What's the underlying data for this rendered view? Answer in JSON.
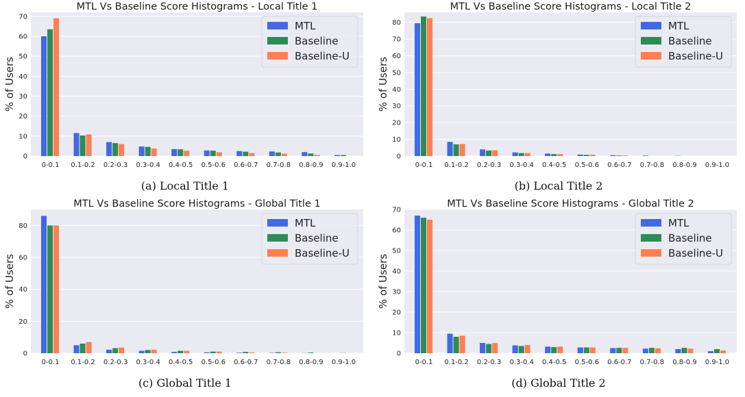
{
  "colors": {
    "MTL": "#4169e1",
    "Baseline": "#2e8b57",
    "Baseline-U": "#ff7f50",
    "plot_bg": "#eaeaf2",
    "grid": "#ffffff"
  },
  "chart_data": [
    {
      "type": "bar",
      "title": "MTL Vs Baseline Score Histograms - Local Title 1",
      "caption": "(a) Local Title 1",
      "ylabel": "% of Users",
      "xlabel": "",
      "ylim": [
        0,
        72
      ],
      "yticks": [
        0,
        10,
        20,
        30,
        40,
        50,
        60,
        70
      ],
      "legend": "top-right",
      "grid": true,
      "categories": [
        "0-0.1",
        "0.1-0.2",
        "0.2-0.3",
        "0.3-0.4",
        "0.4-0.5",
        "0.5-0.6",
        "0.6-0.7",
        "0.7-0.8",
        "0.8-0.9",
        "0.9-1.0"
      ],
      "series": [
        {
          "name": "MTL",
          "values": [
            60,
            11.5,
            7,
            4.8,
            3.5,
            2.8,
            2.5,
            2.3,
            2,
            0.5
          ]
        },
        {
          "name": "Baseline",
          "values": [
            63.5,
            10.3,
            6.5,
            4.6,
            3.4,
            2.7,
            2.2,
            1.8,
            1.3,
            0.5
          ]
        },
        {
          "name": "Baseline-U",
          "values": [
            69,
            10.8,
            6,
            3.8,
            2.7,
            1.9,
            1.5,
            1.2,
            0.6,
            0
          ]
        }
      ]
    },
    {
      "type": "bar",
      "title": "MTL Vs Baseline Score Histograms - Local Title 2",
      "caption": "(b) Local Title 2",
      "ylabel": "% of Users",
      "xlabel": "",
      "ylim": [
        0,
        86
      ],
      "yticks": [
        0,
        10,
        20,
        30,
        40,
        50,
        60,
        70,
        80
      ],
      "legend": "top-right",
      "grid": true,
      "categories": [
        "0-0.1",
        "0.1-0.2",
        "0.2-0.3",
        "0.3-0.4",
        "0.4-0.5",
        "0.5-0.6",
        "0.6-0.7",
        "0.7-0.8",
        "0.8-0.9",
        "0.9-1.0"
      ],
      "series": [
        {
          "name": "MTL",
          "values": [
            79.5,
            8.5,
            4,
            2.2,
            1.5,
            0.9,
            0.5,
            0.3,
            0.1,
            0
          ]
        },
        {
          "name": "Baseline",
          "values": [
            83.5,
            7,
            3.3,
            1.8,
            1.2,
            0.7,
            0.3,
            0,
            0,
            0
          ]
        },
        {
          "name": "Baseline-U",
          "values": [
            82.5,
            7.2,
            3.5,
            1.8,
            1.2,
            0.8,
            0.3,
            0,
            0,
            0
          ]
        }
      ]
    },
    {
      "type": "bar",
      "title": "MTL Vs Baseline Score Histograms - Global Title 1",
      "caption": "(c) Global Title 1",
      "ylabel": "% of Users",
      "xlabel": "",
      "ylim": [
        0,
        90
      ],
      "yticks": [
        0,
        20,
        40,
        60,
        80
      ],
      "legend": "top-right",
      "grid": true,
      "categories": [
        "0-0.1",
        "0.1-0.2",
        "0.2-0.3",
        "0.3-0.4",
        "0.4-0.5",
        "0.5-0.6",
        "0.6-0.7",
        "0.7-0.8",
        "0.8-0.9",
        "0.9-1.0"
      ],
      "series": [
        {
          "name": "MTL",
          "values": [
            86,
            5,
            2.2,
            1.5,
            0.8,
            0.5,
            0.3,
            0.2,
            0.1,
            0
          ]
        },
        {
          "name": "Baseline",
          "values": [
            80,
            6,
            3.2,
            2,
            1.5,
            1,
            0.8,
            0.6,
            0.4,
            0.1
          ]
        },
        {
          "name": "Baseline-U",
          "values": [
            80,
            7,
            3.5,
            2.2,
            1.5,
            1,
            0.5,
            0.3,
            0,
            0
          ]
        }
      ]
    },
    {
      "type": "bar",
      "title": "MTL Vs Baseline Score Histograms - Global Title 2",
      "caption": "(d) Global Title 2",
      "ylabel": "% of Users",
      "xlabel": "",
      "ylim": [
        0,
        70
      ],
      "yticks": [
        0,
        10,
        20,
        30,
        40,
        50,
        60,
        70
      ],
      "legend": "top-right",
      "grid": true,
      "categories": [
        "0-0.1",
        "0.1-0.2",
        "0.2-0.3",
        "0.3-0.4",
        "0.4-0.5",
        "0.5-0.6",
        "0.6-0.7",
        "0.7-0.8",
        "0.8-0.9",
        "0.9-1.0"
      ],
      "series": [
        {
          "name": "MTL",
          "values": [
            67,
            9.5,
            5,
            3.8,
            3.2,
            2.8,
            2.5,
            2.2,
            2,
            1
          ]
        },
        {
          "name": "Baseline",
          "values": [
            66,
            8,
            4.5,
            3.5,
            3,
            2.8,
            2.6,
            2.6,
            2.6,
            2
          ]
        },
        {
          "name": "Baseline-U",
          "values": [
            65,
            8.5,
            5,
            4,
            3.2,
            2.8,
            2.6,
            2.4,
            2.2,
            1.3
          ]
        }
      ]
    }
  ]
}
